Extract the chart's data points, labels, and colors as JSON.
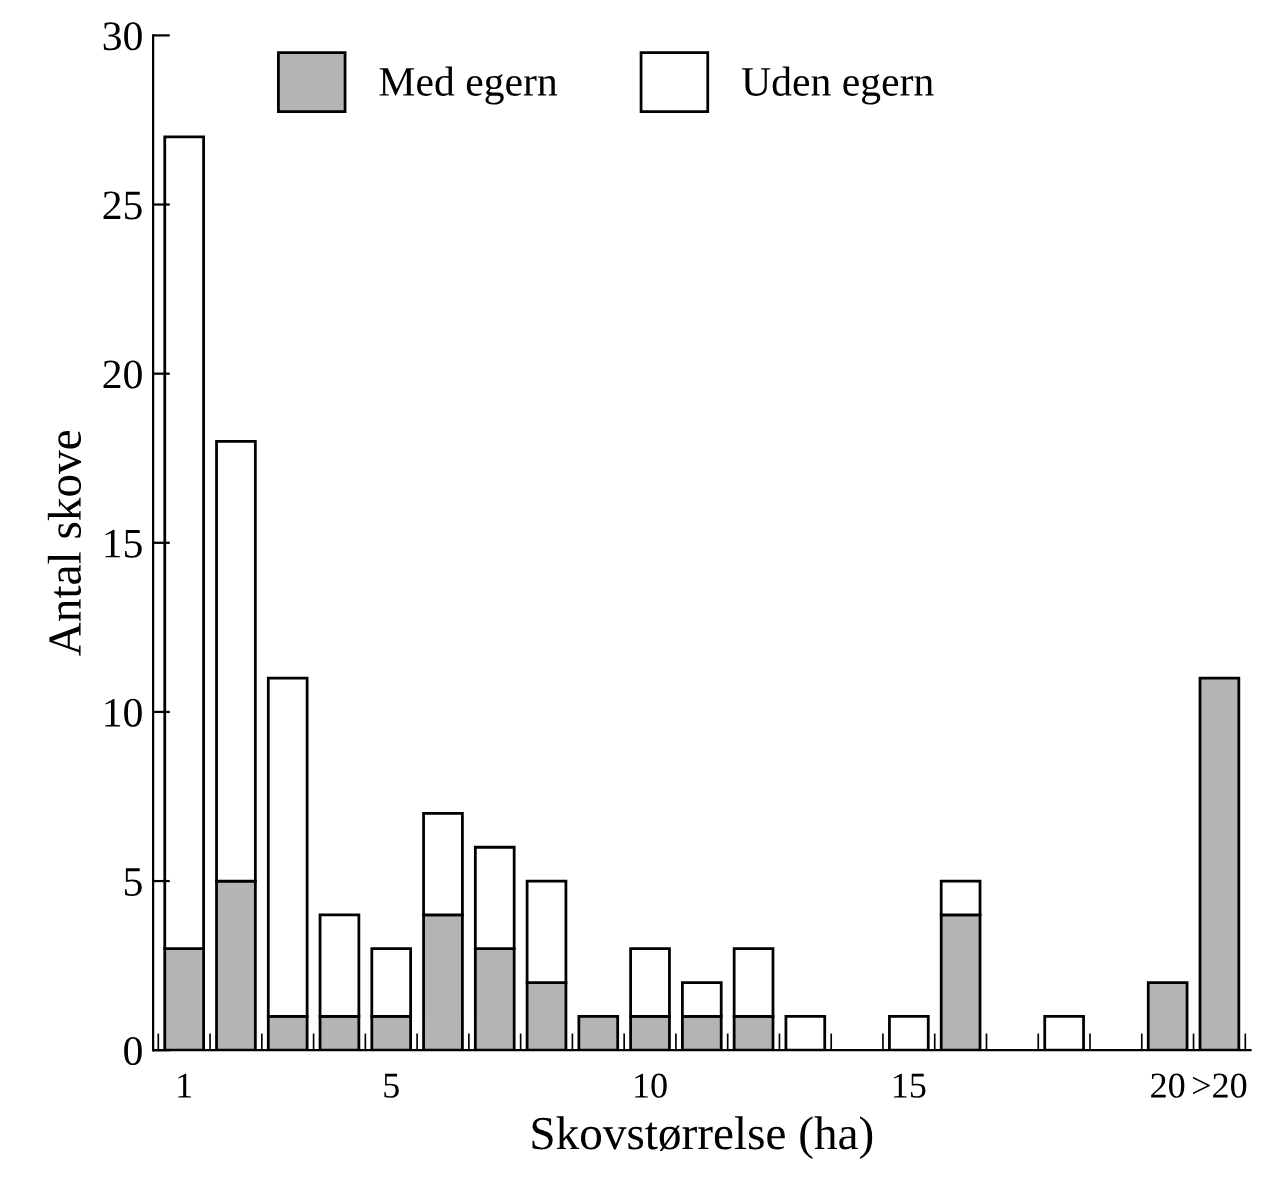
{
  "chart_data": {
    "type": "bar",
    "stacked": true,
    "xlabel": "Skovstørrelse (ha)",
    "ylabel": "Antal skove",
    "categories": [
      "1",
      null,
      null,
      null,
      "5",
      null,
      null,
      null,
      null,
      "10",
      null,
      null,
      null,
      null,
      "15",
      null,
      null,
      null,
      null,
      "20",
      ">20"
    ],
    "series": [
      {
        "name": "Med egern",
        "color": "#b4b4b4",
        "values": [
          3,
          5,
          1,
          1,
          1,
          4,
          3,
          2,
          1,
          1,
          1,
          1,
          null,
          null,
          null,
          4,
          null,
          null,
          null,
          2,
          11
        ]
      },
      {
        "name": "Uden egern",
        "color": "#ffffff",
        "values": [
          24,
          13,
          10,
          3,
          2,
          3,
          3,
          3,
          null,
          2,
          1,
          2,
          1,
          null,
          1,
          1,
          null,
          1,
          null,
          null,
          null
        ]
      }
    ],
    "ylim": [
      0,
      30
    ],
    "yticks": [
      0,
      5,
      10,
      15,
      20,
      25,
      30
    ],
    "legend": "top left",
    "grid": false
  }
}
